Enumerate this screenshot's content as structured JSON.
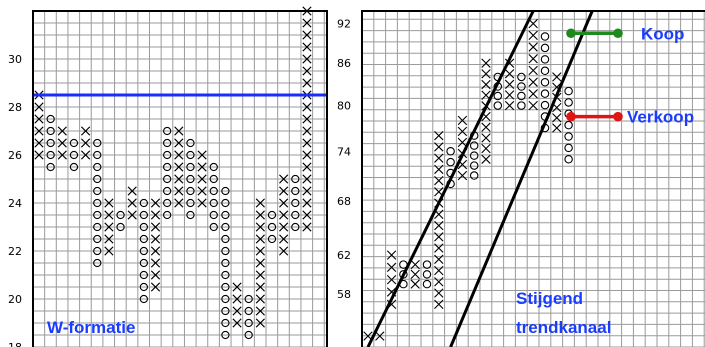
{
  "colors": {
    "grid": "#9a9a9a",
    "frame": "#000000",
    "resistance": "#1a2cff",
    "label": "#1a3cff",
    "buy": "#1e8a1e",
    "sell": "#e01414"
  },
  "chart_data": [
    {
      "type": "point_and_figure",
      "title": "W-formatie",
      "xlabel": "",
      "ylabel": "",
      "ylim": [
        18,
        32
      ],
      "yticks": [
        18,
        20,
        22,
        24,
        26,
        28,
        30
      ],
      "box_size": 0.5,
      "grid": true,
      "resistance_line": 28.5,
      "columns": [
        {
          "type": "X",
          "low": 26.0,
          "high": 28.5
        },
        {
          "type": "O",
          "low": 25.5,
          "high": 27.5
        },
        {
          "type": "X",
          "low": 26.0,
          "high": 27.0
        },
        {
          "type": "O",
          "low": 25.5,
          "high": 26.5
        },
        {
          "type": "X",
          "low": 26.0,
          "high": 27.0
        },
        {
          "type": "O",
          "low": 21.5,
          "high": 26.5
        },
        {
          "type": "X",
          "low": 22.0,
          "high": 24.0
        },
        {
          "type": "O",
          "low": 23.0,
          "high": 23.5
        },
        {
          "type": "X",
          "low": 23.5,
          "high": 24.5
        },
        {
          "type": "O",
          "low": 20.0,
          "high": 24.0
        },
        {
          "type": "X",
          "low": 20.5,
          "high": 24.0
        },
        {
          "type": "O",
          "low": 23.5,
          "high": 27.0
        },
        {
          "type": "X",
          "low": 24.0,
          "high": 27.0
        },
        {
          "type": "O",
          "low": 23.5,
          "high": 26.5
        },
        {
          "type": "X",
          "low": 24.0,
          "high": 26.0
        },
        {
          "type": "O",
          "low": 23.0,
          "high": 25.5
        },
        {
          "type": "O",
          "low": 18.5,
          "high": 24.5
        },
        {
          "type": "X",
          "low": 19.0,
          "high": 20.5
        },
        {
          "type": "O",
          "low": 18.5,
          "high": 20.0
        },
        {
          "type": "X",
          "low": 19.0,
          "high": 24.0
        },
        {
          "type": "O",
          "low": 22.5,
          "high": 23.5
        },
        {
          "type": "X",
          "low": 22.0,
          "high": 25.0
        },
        {
          "type": "O",
          "low": 23.0,
          "high": 25.0
        },
        {
          "type": "X",
          "low": 23.0,
          "high": 32.0
        }
      ]
    },
    {
      "type": "point_and_figure",
      "title": "Stijgend trendkanaal",
      "xlabel": "",
      "ylabel": "",
      "ylim": [
        53,
        94
      ],
      "yticks": [
        58,
        62,
        68,
        74,
        80,
        86,
        92
      ],
      "y_scale": "log",
      "grid": true,
      "trend_channel": {
        "upper": {
          "from": [
            0,
            53
          ],
          "to": [
            14,
            94
          ]
        },
        "lower": {
          "from": [
            7,
            53
          ],
          "to": [
            19,
            94
          ]
        }
      },
      "signals": [
        {
          "label": "Koop",
          "price": 90.5,
          "color": "#1e8a1e"
        },
        {
          "label": "Verkoop",
          "price": 78.5,
          "color": "#e01414"
        }
      ],
      "columns": [
        {
          "type": "X",
          "low": 54,
          "high": 54
        },
        {
          "type": "X",
          "low": 54,
          "high": 54
        },
        {
          "type": "X",
          "low": 57,
          "high": 62
        },
        {
          "type": "O",
          "low": 59,
          "high": 61
        },
        {
          "type": "X",
          "low": 59,
          "high": 61
        },
        {
          "type": "O",
          "low": 59,
          "high": 61
        },
        {
          "type": "X",
          "low": 57,
          "high": 76
        },
        {
          "type": "O",
          "low": 70,
          "high": 74
        },
        {
          "type": "X",
          "low": 71,
          "high": 78
        },
        {
          "type": "O",
          "low": 71,
          "high": 76
        },
        {
          "type": "X",
          "low": 73,
          "high": 86
        },
        {
          "type": "O",
          "low": 80,
          "high": 84
        },
        {
          "type": "X",
          "low": 80,
          "high": 86
        },
        {
          "type": "O",
          "low": 80,
          "high": 84
        },
        {
          "type": "X",
          "low": 80,
          "high": 92
        },
        {
          "type": "O",
          "low": 77,
          "high": 90
        },
        {
          "type": "X",
          "low": 77,
          "high": 84
        },
        {
          "type": "O",
          "low": 73,
          "high": 82
        }
      ]
    }
  ]
}
